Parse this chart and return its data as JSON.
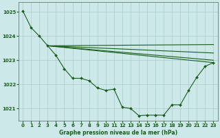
{
  "title": "Graphe pression niveau de la mer (hPa)",
  "bg_color": "#cce8e8",
  "grid_color": "#b0d0d0",
  "line_color": "#1a5c1a",
  "xlim": [
    -0.5,
    23.5
  ],
  "ylim": [
    1020.5,
    1025.4
  ],
  "yticks": [
    1021,
    1022,
    1023,
    1024,
    1025
  ],
  "xticks": [
    0,
    1,
    2,
    3,
    4,
    5,
    6,
    7,
    8,
    9,
    10,
    11,
    12,
    13,
    14,
    15,
    16,
    17,
    18,
    19,
    20,
    21,
    22,
    23
  ],
  "main_line": {
    "x": [
      0,
      1,
      2,
      3,
      4,
      5,
      6,
      7,
      8,
      9,
      10,
      11,
      12,
      13,
      14,
      15,
      16,
      17,
      18,
      19,
      20,
      21,
      22,
      23
    ],
    "y": [
      1025.05,
      1024.35,
      1024.0,
      1023.6,
      1023.2,
      1022.65,
      1022.25,
      1022.25,
      1022.15,
      1021.85,
      1021.75,
      1021.8,
      1021.05,
      1021.0,
      1020.7,
      1020.72,
      1020.72,
      1020.72,
      1021.15,
      1021.15,
      1021.75,
      1022.3,
      1022.75,
      1022.9
    ]
  },
  "extra_lines": [
    {
      "x": [
        3,
        23
      ],
      "y": [
        1023.6,
        1023.65
      ]
    },
    {
      "x": [
        3,
        23
      ],
      "y": [
        1023.6,
        1023.3
      ]
    },
    {
      "x": [
        3,
        23
      ],
      "y": [
        1023.6,
        1023.0
      ]
    },
    {
      "x": [
        3,
        23
      ],
      "y": [
        1023.6,
        1022.9
      ]
    }
  ]
}
